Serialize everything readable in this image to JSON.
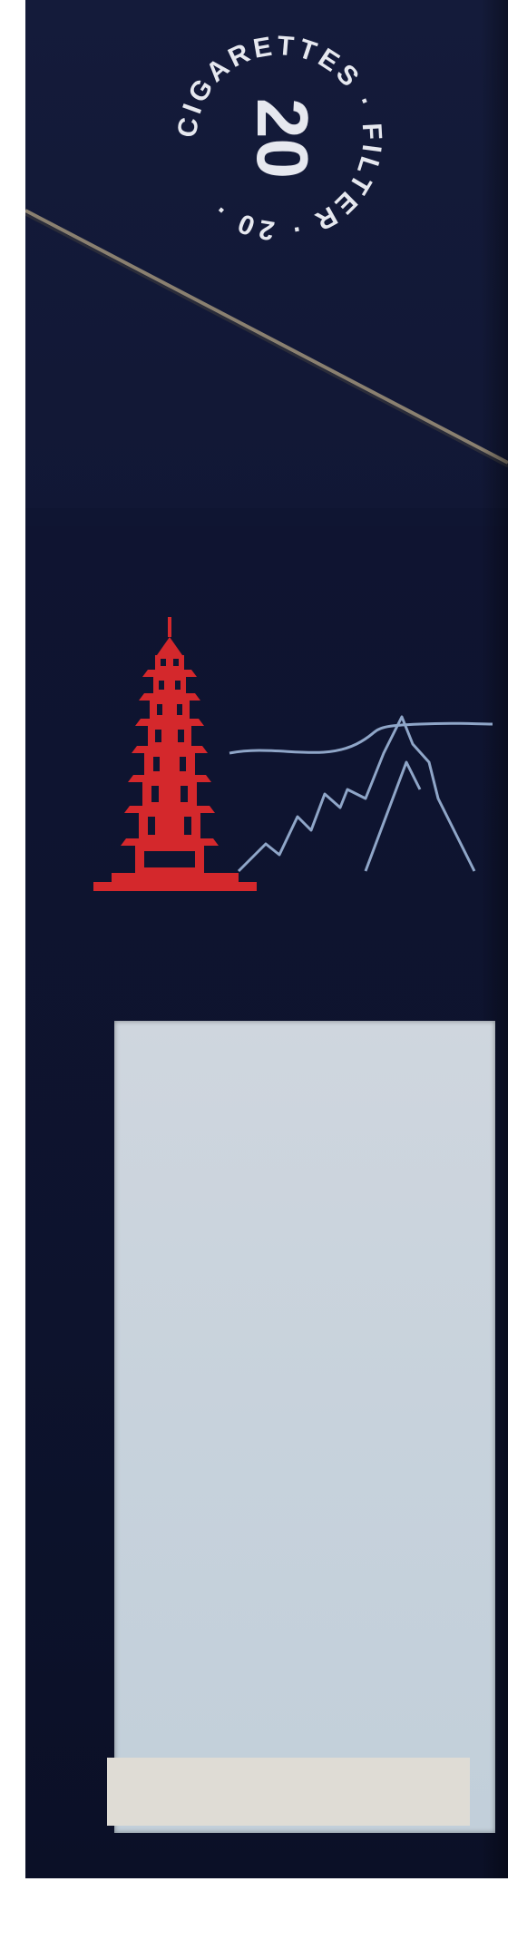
{
  "seal": {
    "ring_text": "CIGARETTES · FILTER · 20 ·",
    "count": "20",
    "ring_top": "CIGARETTES",
    "ring_filter": "FILTER"
  },
  "icons": {
    "pagoda": "pagoda-icon",
    "mountains": "mountain-range-icon"
  },
  "colors": {
    "pack": "#111735",
    "pagoda": "#d4282c",
    "mountains": "#8fa6c8",
    "label": "#c9d3dd",
    "strip": "#dfdcd5",
    "seal_text": "#e6e8ef"
  }
}
